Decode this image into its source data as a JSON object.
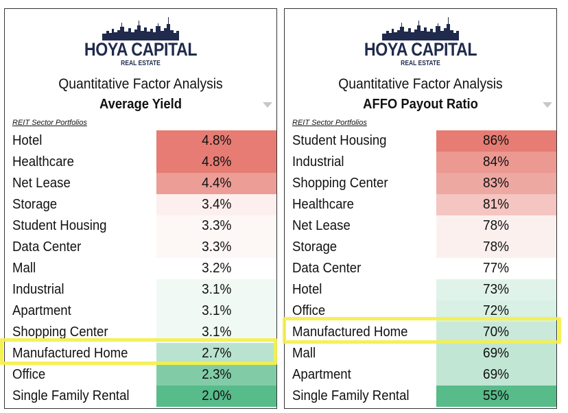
{
  "panels": [
    {
      "brand": "HOYA CAPITAL",
      "brand_sub": "REAL ESTATE",
      "subtitle": "Quantitative Factor Analysis",
      "metric": "Average Yield",
      "section_label": "REIT Sector Portfolios"
    },
    {
      "brand": "HOYA CAPITAL",
      "brand_sub": "REAL ESTATE",
      "subtitle": "Quantitative Factor Analysis",
      "metric": "AFFO Payout Ratio",
      "section_label": "REIT Sector Portfolios"
    }
  ],
  "chart_data": [
    {
      "type": "table",
      "title": "Average Yield",
      "categories": [
        "Hotel",
        "Healthcare",
        "Net Lease",
        "Storage",
        "Student Housing",
        "Data Center",
        "Mall",
        "Industrial",
        "Apartment",
        "Shopping Center",
        "Manufactured Home",
        "Office",
        "Single Family Rental"
      ],
      "values": [
        4.8,
        4.8,
        4.4,
        3.4,
        3.3,
        3.3,
        3.2,
        3.1,
        3.1,
        3.1,
        2.7,
        2.3,
        2.0
      ],
      "labels": [
        "4.8%",
        "4.8%",
        "4.4%",
        "3.4%",
        "3.3%",
        "3.3%",
        "3.2%",
        "3.1%",
        "3.1%",
        "3.1%",
        "2.7%",
        "2.3%",
        "2.0%"
      ],
      "unit": "%",
      "highlighted": "Manufactured Home",
      "color_scale": {
        "high": "#e67c73",
        "mid": "#ffffff",
        "low": "#57bb8a",
        "min": 2.0,
        "mid_value": 3.2,
        "max": 4.8
      }
    },
    {
      "type": "table",
      "title": "AFFO Payout Ratio",
      "categories": [
        "Student Housing",
        "Industrial",
        "Shopping Center",
        "Healthcare",
        "Net Lease",
        "Storage",
        "Data Center",
        "Hotel",
        "Office",
        "Manufactured Home",
        "Mall",
        "Apartment",
        "Single Family Rental"
      ],
      "values": [
        86,
        84,
        83,
        81,
        78,
        78,
        77,
        73,
        72,
        70,
        69,
        69,
        55
      ],
      "labels": [
        "86%",
        "84%",
        "83%",
        "81%",
        "78%",
        "78%",
        "77%",
        "73%",
        "72%",
        "70%",
        "69%",
        "69%",
        "55%"
      ],
      "unit": "%",
      "highlighted": "Manufactured Home",
      "color_scale": {
        "high": "#e67c73",
        "mid": "#ffffff",
        "low": "#57bb8a",
        "min": 55,
        "mid_value": 77,
        "max": 86
      }
    }
  ]
}
